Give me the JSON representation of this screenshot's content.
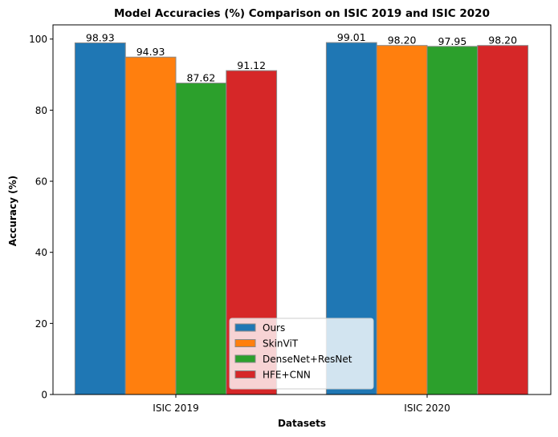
{
  "chart_data": {
    "type": "bar",
    "title": "Model Accuracies (%) Comparison on ISIC 2019 and ISIC 2020",
    "xlabel": "Datasets",
    "ylabel": "Accuracy (%)",
    "categories": [
      "ISIC 2019",
      "ISIC 2020"
    ],
    "ylim": [
      0,
      104
    ],
    "yticks": [
      0,
      20,
      40,
      60,
      80,
      100
    ],
    "grid": false,
    "legend_position": "bottom-center",
    "series": [
      {
        "name": "Ours",
        "color": "#1f77b4",
        "values": [
          98.93,
          99.01
        ],
        "labels": [
          "98.93",
          "99.01"
        ]
      },
      {
        "name": "SkinViT",
        "color": "#ff7f0e",
        "values": [
          94.93,
          98.2
        ],
        "labels": [
          "94.93",
          "98.20"
        ]
      },
      {
        "name": "DenseNet+ResNet",
        "color": "#2ca02c",
        "values": [
          87.62,
          97.95
        ],
        "labels": [
          "87.62",
          "97.95"
        ]
      },
      {
        "name": "HFE+CNN",
        "color": "#d62728",
        "values": [
          91.12,
          98.2
        ],
        "labels": [
          "91.12",
          "98.20"
        ]
      }
    ]
  }
}
